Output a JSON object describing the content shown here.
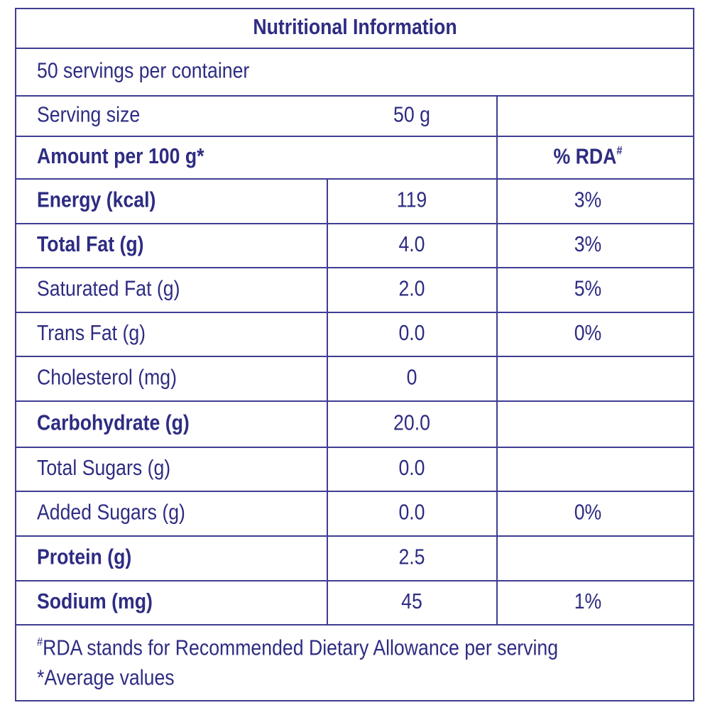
{
  "header": {
    "title": "Nutritional Information",
    "servings": "50 servings per container"
  },
  "serving_size": {
    "label": "Serving size",
    "value": "50 g"
  },
  "columns": {
    "amount": "Amount per 100 g*",
    "rda": {
      "text": "% RDA",
      "sup": "#"
    }
  },
  "table": {
    "rows": [
      {
        "name": "Energy (kcal)",
        "amount": "119",
        "rda": "3%",
        "bold": true
      },
      {
        "name": "Total Fat (g)",
        "amount": "4.0",
        "rda": "3%",
        "bold": true
      },
      {
        "name": "Saturated Fat (g)",
        "amount": "2.0",
        "rda": "5%",
        "bold": false
      },
      {
        "name": "Trans Fat (g)",
        "amount": "0.0",
        "rda": "0%",
        "bold": false
      },
      {
        "name": "Cholesterol (mg)",
        "amount": "0",
        "rda": null,
        "bold": false
      },
      {
        "name": "Carbohydrate (g)",
        "amount": "20.0",
        "rda": null,
        "bold": true
      },
      {
        "name": "Total Sugars (g)",
        "amount": "0.0",
        "rda": null,
        "bold": false
      },
      {
        "name": "Added Sugars (g)",
        "amount": "0.0",
        "rda": "0%",
        "bold": false
      },
      {
        "name": "Protein (g)",
        "amount": "2.5",
        "rda": null,
        "bold": true
      },
      {
        "name": "Sodium (mg)",
        "amount": "45",
        "rda": "1%",
        "bold": true
      }
    ]
  },
  "footer": {
    "notes": [
      {
        "sup": "#",
        "text": "RDA stands for Recommended Dietary Allowance per serving"
      },
      {
        "text": "*Average values"
      }
    ]
  }
}
